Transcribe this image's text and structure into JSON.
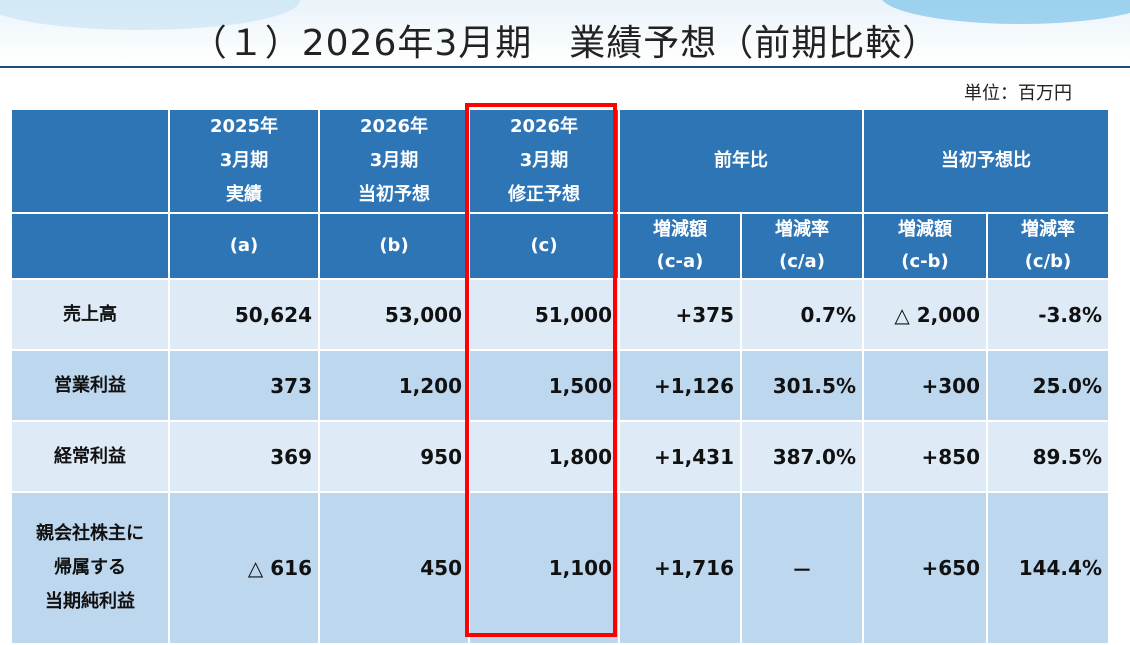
{
  "title": "（１）2026年3月期　業績予想（前期比較）",
  "unit": "単位：百万円",
  "headers": {
    "col_a": [
      "2025年",
      "3月期",
      "実績"
    ],
    "col_b": [
      "2026年",
      "3月期",
      "当初予想"
    ],
    "col_c": [
      "2026年",
      "3月期",
      "修正予想"
    ],
    "yoy": "前年比",
    "vs_initial": "当初予想比",
    "sub_a": "(a)",
    "sub_b": "(b)",
    "sub_c": "(c)",
    "yoy_diff": [
      "増減額",
      "(c-a)"
    ],
    "yoy_rate": [
      "増減率",
      "(c/a)"
    ],
    "init_diff": [
      "増減額",
      "(c-b)"
    ],
    "init_rate": [
      "増減率",
      "(c/b)"
    ]
  },
  "rows": [
    {
      "label": [
        "売上高"
      ],
      "a": "50,624",
      "b": "53,000",
      "c": "51,000",
      "yoy_diff": "+375",
      "yoy_rate": "0.7%",
      "init_diff": "△ 2,000",
      "init_rate": "-3.8%"
    },
    {
      "label": [
        "営業利益"
      ],
      "a": "373",
      "b": "1,200",
      "c": "1,500",
      "yoy_diff": "+1,126",
      "yoy_rate": "301.5%",
      "init_diff": "+300",
      "init_rate": "25.0%"
    },
    {
      "label": [
        "経常利益"
      ],
      "a": "369",
      "b": "950",
      "c": "1,800",
      "yoy_diff": "+1,431",
      "yoy_rate": "387.0%",
      "init_diff": "+850",
      "init_rate": "89.5%"
    },
    {
      "label": [
        "親会社株主に",
        "帰属する",
        "当期純利益"
      ],
      "a": "△ 616",
      "b": "450",
      "c": "1,100",
      "yoy_diff": "+1,716",
      "yoy_rate": "－",
      "init_diff": "+650",
      "init_rate": "144.4%"
    }
  ],
  "colors": {
    "header_bg": "#2e75b6",
    "row_light": "#deebf7",
    "row_dark": "#bdd7ee",
    "highlight": "#ff0000"
  }
}
